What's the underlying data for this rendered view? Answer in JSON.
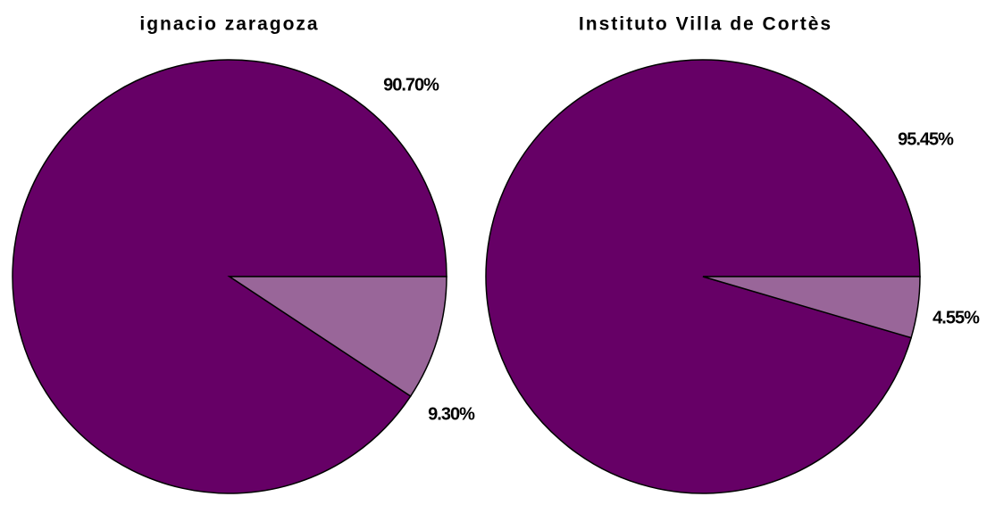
{
  "chart_data": [
    {
      "type": "pie",
      "title": "ignacio zaragoza",
      "categories": [
        null,
        null
      ],
      "values": [
        90.7,
        9.3
      ],
      "value_labels": [
        "90.70%",
        "9.30%"
      ],
      "colors": [
        "#660066",
        "#996699"
      ]
    },
    {
      "type": "pie",
      "title": "Instituto Villa de Cortès",
      "categories": [
        null,
        null
      ],
      "values": [
        95.45,
        4.55
      ],
      "value_labels": [
        "95.45%",
        "4.55%"
      ],
      "colors": [
        "#660066",
        "#996699"
      ]
    }
  ]
}
